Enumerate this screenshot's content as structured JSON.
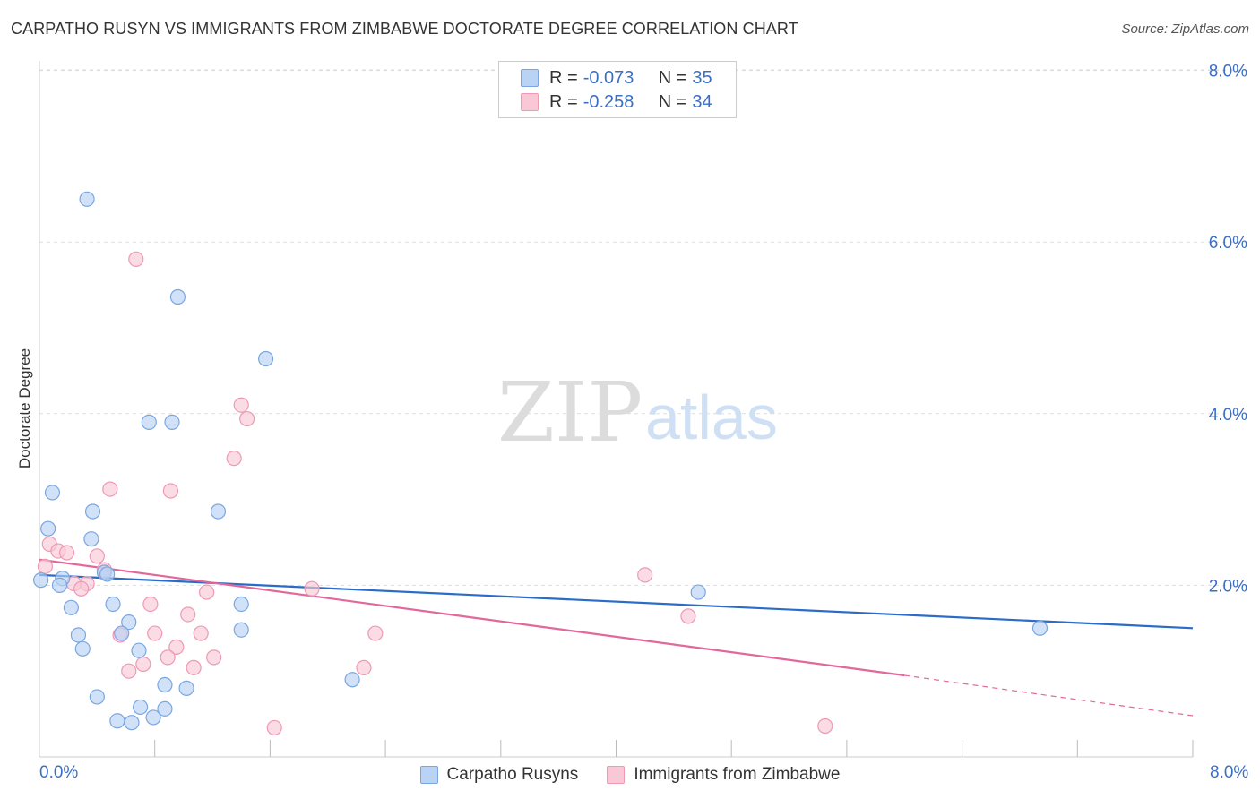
{
  "header": {
    "title": "CARPATHO RUSYN VS IMMIGRANTS FROM ZIMBABWE DOCTORATE DEGREE CORRELATION CHART",
    "source": "Source: ZipAtlas.com"
  },
  "watermark": {
    "part1": "ZIP",
    "part2": "atlas"
  },
  "legend": {
    "rows": [
      {
        "r_label": "R =",
        "r_value": "-0.073",
        "n_label": "N =",
        "n_value": "35"
      },
      {
        "r_label": "R =",
        "r_value": "-0.258",
        "n_label": "N =",
        "n_value": "34"
      }
    ]
  },
  "bottom_legend": {
    "series1": "Carpatho Rusyns",
    "series2": "Immigrants from Zimbabwe"
  },
  "axes": {
    "x_min_label": "0.0%",
    "x_max_label": "8.0%",
    "y_label": "Doctorate Degree",
    "y_ticks": [
      "2.0%",
      "4.0%",
      "6.0%",
      "8.0%"
    ]
  },
  "colors": {
    "blue_fill": "#b9d3f5",
    "blue_stroke": "#7aa6e0",
    "blue_line": "#2a6cc8",
    "pink_fill": "#f9c7d6",
    "pink_stroke": "#ee9ab4",
    "pink_line": "#e2679a",
    "axis_text": "#3a6fc4",
    "grid": "#dddddd"
  },
  "chart_data": {
    "type": "scatter",
    "title": "CARPATHO RUSYN VS IMMIGRANTS FROM ZIMBABWE DOCTORATE DEGREE CORRELATION CHART",
    "xlabel": "",
    "ylabel": "Doctorate Degree",
    "xlim": [
      0,
      8
    ],
    "ylim": [
      0,
      8.4
    ],
    "y_ticks": [
      2,
      4,
      6,
      8
    ],
    "grid": true,
    "legend_position": "top-center",
    "series": [
      {
        "name": "Carpatho Rusyns",
        "color": "blue",
        "r": -0.073,
        "n": 35,
        "trend": {
          "x": [
            0,
            8
          ],
          "y": [
            2.12,
            1.5
          ]
        },
        "points": [
          {
            "x": 0.33,
            "y": 6.5
          },
          {
            "x": 0.96,
            "y": 5.36
          },
          {
            "x": 1.57,
            "y": 4.64
          },
          {
            "x": 0.76,
            "y": 3.9
          },
          {
            "x": 0.92,
            "y": 3.9
          },
          {
            "x": 0.09,
            "y": 3.08
          },
          {
            "x": 0.37,
            "y": 2.86
          },
          {
            "x": 1.24,
            "y": 2.86
          },
          {
            "x": 0.06,
            "y": 2.66
          },
          {
            "x": 0.36,
            "y": 2.54
          },
          {
            "x": 0.45,
            "y": 2.15
          },
          {
            "x": 0.47,
            "y": 2.13
          },
          {
            "x": 0.16,
            "y": 2.08
          },
          {
            "x": 0.01,
            "y": 2.06
          },
          {
            "x": 0.14,
            "y": 2.0
          },
          {
            "x": 0.51,
            "y": 1.78
          },
          {
            "x": 0.22,
            "y": 1.74
          },
          {
            "x": 1.4,
            "y": 1.78
          },
          {
            "x": 0.62,
            "y": 1.57
          },
          {
            "x": 0.57,
            "y": 1.44
          },
          {
            "x": 0.27,
            "y": 1.42
          },
          {
            "x": 1.4,
            "y": 1.48
          },
          {
            "x": 0.3,
            "y": 1.26
          },
          {
            "x": 0.69,
            "y": 1.24
          },
          {
            "x": 4.57,
            "y": 1.92
          },
          {
            "x": 6.94,
            "y": 1.5
          },
          {
            "x": 2.17,
            "y": 0.9
          },
          {
            "x": 0.87,
            "y": 0.84
          },
          {
            "x": 1.02,
            "y": 0.8
          },
          {
            "x": 0.4,
            "y": 0.7
          },
          {
            "x": 0.7,
            "y": 0.58
          },
          {
            "x": 0.87,
            "y": 0.56
          },
          {
            "x": 0.54,
            "y": 0.42
          },
          {
            "x": 0.79,
            "y": 0.46
          },
          {
            "x": 0.64,
            "y": 0.4
          }
        ]
      },
      {
        "name": "Immigrants from Zimbabwe",
        "color": "pink",
        "r": -0.258,
        "n": 34,
        "trend": {
          "x": [
            0,
            6.0
          ],
          "y": [
            2.3,
            0.95
          ]
        },
        "trend_dashed": {
          "x": [
            6.0,
            8
          ],
          "y": [
            0.95,
            0.48
          ]
        },
        "points": [
          {
            "x": 0.67,
            "y": 5.8
          },
          {
            "x": 1.4,
            "y": 4.1
          },
          {
            "x": 1.44,
            "y": 3.94
          },
          {
            "x": 1.35,
            "y": 3.48
          },
          {
            "x": 0.49,
            "y": 3.12
          },
          {
            "x": 0.91,
            "y": 3.1
          },
          {
            "x": 0.07,
            "y": 2.48
          },
          {
            "x": 0.13,
            "y": 2.4
          },
          {
            "x": 0.19,
            "y": 2.38
          },
          {
            "x": 0.4,
            "y": 2.34
          },
          {
            "x": 0.04,
            "y": 2.22
          },
          {
            "x": 0.45,
            "y": 2.18
          },
          {
            "x": 0.33,
            "y": 2.02
          },
          {
            "x": 0.24,
            "y": 2.02
          },
          {
            "x": 0.29,
            "y": 1.96
          },
          {
            "x": 1.16,
            "y": 1.92
          },
          {
            "x": 1.89,
            "y": 1.96
          },
          {
            "x": 4.2,
            "y": 2.12
          },
          {
            "x": 0.77,
            "y": 1.78
          },
          {
            "x": 1.03,
            "y": 1.66
          },
          {
            "x": 4.5,
            "y": 1.64
          },
          {
            "x": 0.56,
            "y": 1.42
          },
          {
            "x": 0.8,
            "y": 1.44
          },
          {
            "x": 1.12,
            "y": 1.44
          },
          {
            "x": 2.33,
            "y": 1.44
          },
          {
            "x": 0.95,
            "y": 1.28
          },
          {
            "x": 0.89,
            "y": 1.16
          },
          {
            "x": 1.21,
            "y": 1.16
          },
          {
            "x": 0.72,
            "y": 1.08
          },
          {
            "x": 1.07,
            "y": 1.04
          },
          {
            "x": 2.25,
            "y": 1.04
          },
          {
            "x": 0.62,
            "y": 1.0
          },
          {
            "x": 1.63,
            "y": 0.34
          },
          {
            "x": 5.45,
            "y": 0.36
          }
        ]
      }
    ]
  }
}
